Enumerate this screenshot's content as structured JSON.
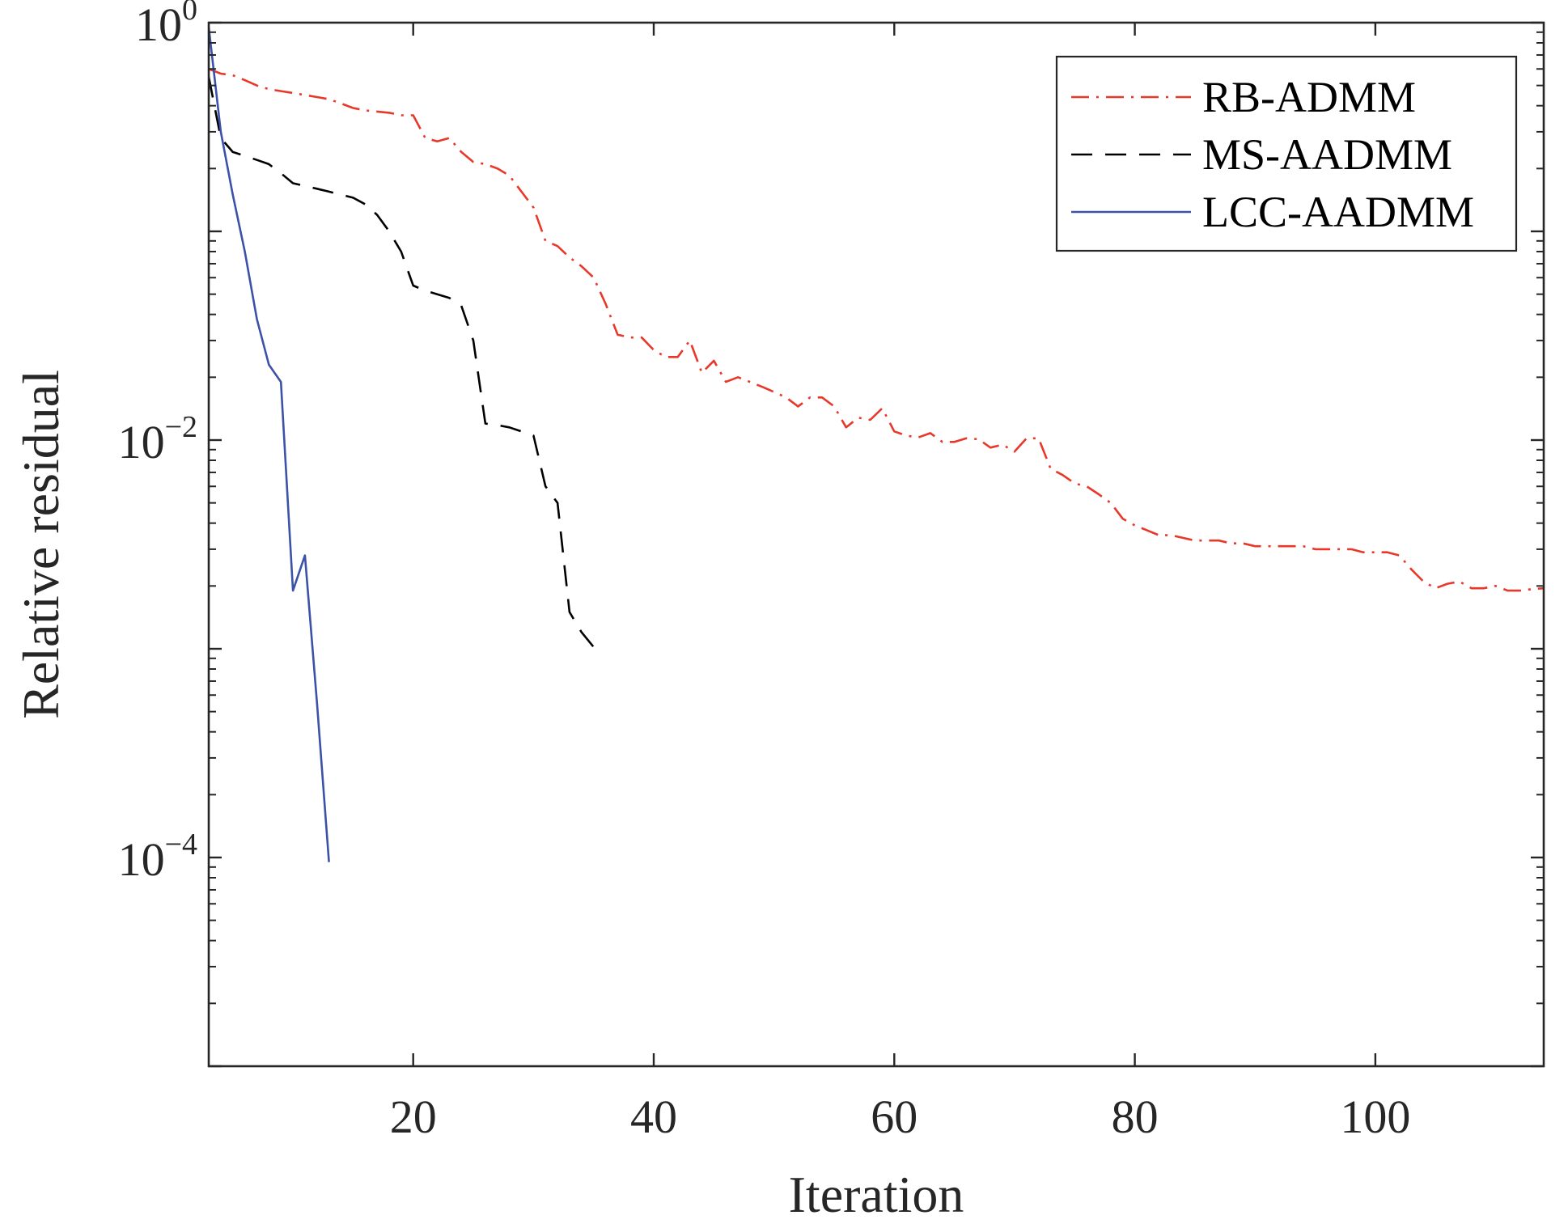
{
  "chart_data": {
    "type": "line",
    "title": "",
    "xlabel": "Iteration",
    "ylabel": "Relative residual",
    "xlim": [
      3,
      114
    ],
    "ylim": [
      1e-05,
      1.0
    ],
    "yscale": "log",
    "grid": false,
    "legend_position": "top-right",
    "x_ticks": [
      20,
      40,
      60,
      80,
      100
    ],
    "x_tick_labels": [
      "20",
      "40",
      "60",
      "80",
      "100"
    ],
    "y_ticks": [
      {
        "value": 1,
        "base": "10",
        "exp": "0"
      },
      {
        "value": 0.01,
        "base": "10",
        "exp": "−2"
      },
      {
        "value": 0.0001,
        "base": "10",
        "exp": "−4"
      }
    ],
    "series": [
      {
        "name": "RB-ADMM",
        "color": "#e8382a",
        "dash": "dashdot",
        "x": [
          3,
          4,
          5,
          6,
          7,
          8,
          9,
          10,
          11,
          12,
          13,
          14,
          15,
          16,
          17,
          18,
          19,
          20,
          21,
          22,
          23,
          24,
          25,
          26,
          27,
          28,
          29,
          30,
          31,
          32,
          33,
          34,
          35,
          36,
          37,
          38,
          39,
          40,
          41,
          42,
          43,
          44,
          45,
          46,
          47,
          48,
          49,
          50,
          51,
          52,
          53,
          54,
          55,
          56,
          57,
          58,
          59,
          60,
          61,
          62,
          63,
          64,
          65,
          66,
          67,
          68,
          69,
          70,
          71,
          72,
          73,
          74,
          75,
          76,
          77,
          78,
          79,
          80,
          81,
          82,
          83,
          84,
          85,
          86,
          87,
          88,
          89,
          90,
          91,
          92,
          93,
          94,
          95,
          96,
          97,
          98,
          99,
          100,
          101,
          102,
          103,
          104,
          105,
          106,
          107,
          108,
          109,
          110,
          111,
          112,
          113,
          114
        ],
        "values": [
          0.6,
          0.57,
          0.56,
          0.53,
          0.5,
          0.48,
          0.47,
          0.46,
          0.45,
          0.44,
          0.43,
          0.41,
          0.39,
          0.38,
          0.375,
          0.37,
          0.36,
          0.36,
          0.28,
          0.27,
          0.28,
          0.24,
          0.215,
          0.21,
          0.2,
          0.185,
          0.155,
          0.13,
          0.09,
          0.085,
          0.075,
          0.068,
          0.06,
          0.045,
          0.032,
          0.031,
          0.031,
          0.027,
          0.025,
          0.025,
          0.03,
          0.021,
          0.024,
          0.019,
          0.02,
          0.019,
          0.018,
          0.017,
          0.016,
          0.0145,
          0.016,
          0.016,
          0.0145,
          0.0115,
          0.0128,
          0.0125,
          0.0142,
          0.011,
          0.0105,
          0.0103,
          0.0108,
          0.0098,
          0.0098,
          0.0102,
          0.0101,
          0.0092,
          0.0095,
          0.0088,
          0.0102,
          0.0102,
          0.0073,
          0.0068,
          0.0062,
          0.006,
          0.0055,
          0.005,
          0.0042,
          0.0039,
          0.0037,
          0.0035,
          0.0035,
          0.0034,
          0.0033,
          0.0033,
          0.0033,
          0.0032,
          0.0032,
          0.0031,
          0.0031,
          0.0031,
          0.0031,
          0.0031,
          0.003,
          0.003,
          0.003,
          0.003,
          0.0029,
          0.0029,
          0.0029,
          0.0028,
          0.0024,
          0.0021,
          0.00195,
          0.00205,
          0.0021,
          0.00195,
          0.00195,
          0.002,
          0.0019,
          0.0019,
          0.00193,
          0.00195
        ]
      },
      {
        "name": "MS-AADMM",
        "color": "#000000",
        "dash": "dashed",
        "x": [
          3,
          4,
          5,
          6,
          7,
          8,
          9,
          10,
          11,
          12,
          13,
          14,
          15,
          16,
          17,
          18,
          19,
          20,
          21,
          22,
          23,
          24,
          25,
          26,
          27,
          28,
          29,
          30,
          31,
          32,
          33,
          34,
          35
        ],
        "values": [
          0.55,
          0.28,
          0.24,
          0.23,
          0.22,
          0.21,
          0.19,
          0.17,
          0.165,
          0.16,
          0.155,
          0.15,
          0.145,
          0.135,
          0.12,
          0.1,
          0.08,
          0.055,
          0.052,
          0.05,
          0.048,
          0.044,
          0.03,
          0.012,
          0.0118,
          0.0115,
          0.011,
          0.0105,
          0.006,
          0.005,
          0.0015,
          0.0012,
          0.00102
        ]
      },
      {
        "name": "LCC-AADMM",
        "color": "#3b52a8",
        "dash": "solid",
        "x": [
          3,
          4,
          5,
          6,
          7,
          8,
          9,
          10,
          11,
          12,
          13
        ],
        "values": [
          0.95,
          0.3,
          0.15,
          0.08,
          0.038,
          0.023,
          0.019,
          0.0019,
          0.0028,
          0.00055,
          9.5e-05
        ]
      }
    ]
  }
}
